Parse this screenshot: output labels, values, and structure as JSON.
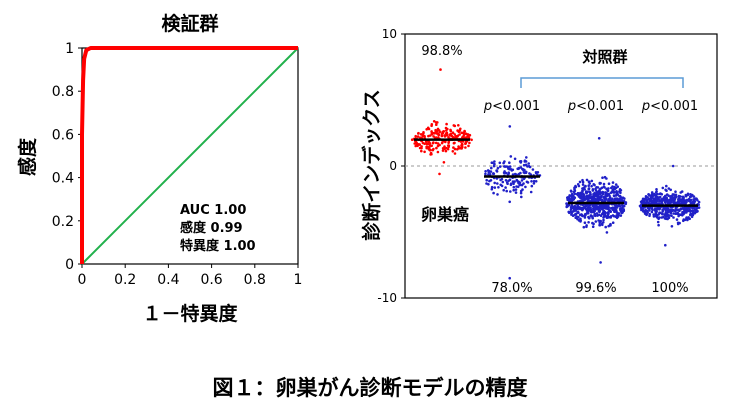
{
  "figure_caption": "図１：卵巣がん診断モデルの精度",
  "chart_data": [
    {
      "type": "line",
      "title": "検証群",
      "xlabel": "１－特異度",
      "ylabel": "感度",
      "xlim": [
        0,
        1
      ],
      "ylim": [
        0,
        1
      ],
      "x_ticks": [
        "0",
        "0.2",
        "0.4",
        "0.6",
        "0.8",
        "1"
      ],
      "y_ticks": [
        "0",
        "0.2",
        "0.4",
        "0.6",
        "0.8",
        "1"
      ],
      "annotations": [
        "AUC 1.00",
        "感度 0.99",
        "特異度 1.00"
      ],
      "colors": {
        "roc": "#ff0000",
        "diagonal": "#22b14c"
      },
      "series": [
        {
          "x": [
            0,
            0.0,
            0.005,
            0.01,
            0.02,
            0.04,
            0.1,
            1.0
          ],
          "y": [
            0,
            0.6,
            0.85,
            0.95,
            0.99,
            1.0,
            1.0,
            1.0
          ]
        },
        {
          "x": [
            0,
            1
          ],
          "y": [
            0,
            1
          ]
        }
      ]
    },
    {
      "type": "scatter",
      "ylabel": "診断インデックス",
      "ylim": [
        -10,
        10
      ],
      "y_ticks": [
        "10",
        "0",
        "-10"
      ],
      "bracket_label": "対照群",
      "groups": [
        {
          "name": "卵巣癌",
          "top_label": "98.8%",
          "bottom_label": "",
          "median": 2.0,
          "min": -0.6,
          "max": 7.3,
          "n": 230,
          "color": "#ff0000"
        },
        {
          "name": "",
          "top_label": "p<0.001",
          "bottom_label": "78.0%",
          "median": -0.8,
          "min": -8.5,
          "max": 3.0,
          "n": 170,
          "color": "#2020c8"
        },
        {
          "name": "",
          "top_label": "p<0.001",
          "bottom_label": "99.6%",
          "median": -2.8,
          "min": -7.3,
          "max": 2.1,
          "n": 620,
          "color": "#2020c8"
        },
        {
          "name": "",
          "top_label": "p<0.001",
          "bottom_label": "100%",
          "median": -3.0,
          "min": -6.0,
          "max": 0.0,
          "n": 500,
          "color": "#2020c8"
        }
      ],
      "colors": {
        "bracket": "#5b9bd5",
        "zero_line": "#999999"
      }
    }
  ]
}
